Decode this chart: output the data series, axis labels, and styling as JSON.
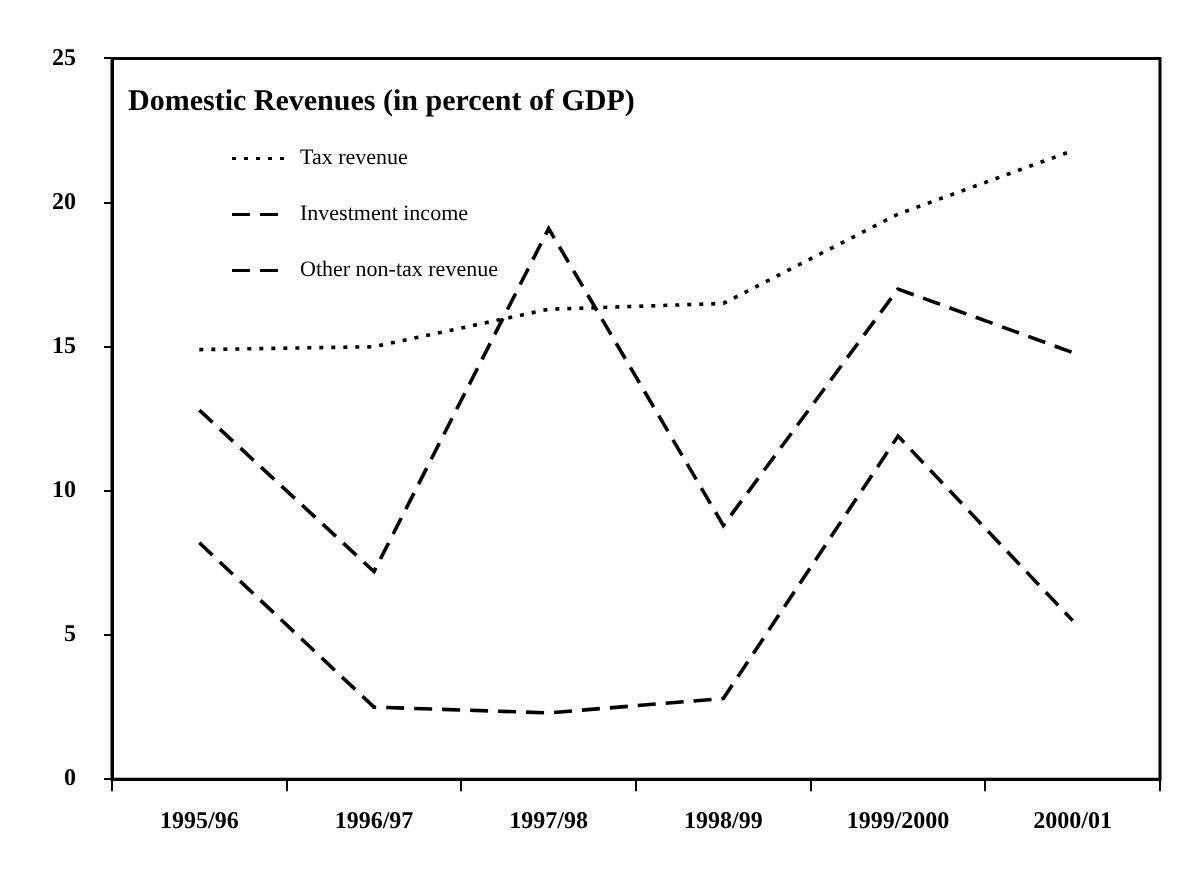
{
  "chart_data": {
    "type": "line",
    "title": "Domestic Revenues (in percent of GDP)",
    "categories": [
      "1995/96",
      "1996/97",
      "1997/98",
      "1998/99",
      "1999/2000",
      "2000/01"
    ],
    "series": [
      {
        "name": "Tax revenue",
        "color": "#000000",
        "line_style": "dotted",
        "values": [
          14.9,
          15.0,
          16.3,
          16.5,
          19.6,
          21.8
        ]
      },
      {
        "name": "Investment income",
        "color": "#000000",
        "line_style": "dashed",
        "values": [
          8.2,
          2.5,
          2.3,
          2.8,
          11.9,
          5.5
        ]
      },
      {
        "name": "Other non-tax revenue",
        "color": "#000000",
        "line_style": "dashed",
        "values": [
          12.8,
          7.2,
          19.1,
          8.8,
          17.0,
          14.8
        ]
      }
    ],
    "ylim": [
      0,
      25
    ],
    "yticks": [
      0,
      5,
      10,
      15,
      20,
      25
    ],
    "grid": false,
    "legend": "top left",
    "marker": "none"
  }
}
